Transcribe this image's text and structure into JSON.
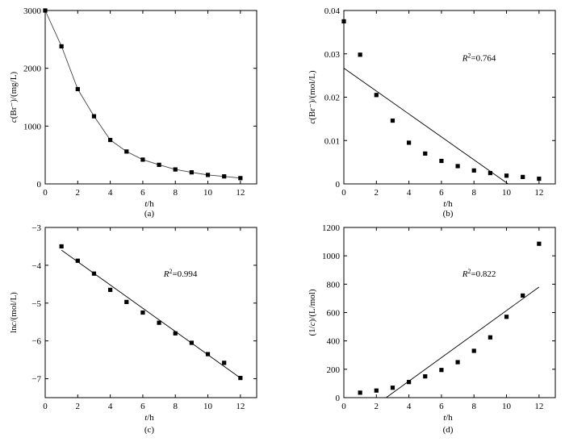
{
  "chart_data": [
    {
      "id": "a",
      "type": "line",
      "caption": "(a)",
      "xlabel_var": "t",
      "xlabel_unit": "/h",
      "ylabel_var": "c",
      "ylabel_unit": "(Br⁻)/(mg/L)",
      "xlim": [
        0,
        13
      ],
      "ylim": [
        0,
        3000
      ],
      "xticks": [
        0,
        2,
        4,
        6,
        8,
        10,
        12
      ],
      "yticks": [
        0,
        1000,
        2000,
        3000
      ],
      "x": [
        0,
        1,
        2,
        3,
        4,
        5,
        6,
        7,
        8,
        9,
        10,
        11,
        12
      ],
      "y": [
        3000,
        2380,
        1640,
        1170,
        760,
        560,
        420,
        330,
        250,
        200,
        155,
        130,
        100
      ],
      "markers": true,
      "connect": true
    },
    {
      "id": "b",
      "type": "scatter",
      "caption": "(b)",
      "xlabel_var": "t",
      "xlabel_unit": "/h",
      "ylabel_var": "c",
      "ylabel_unit": "(Br⁻)/(mol/L)",
      "xlim": [
        0,
        13
      ],
      "ylim": [
        0,
        0.04
      ],
      "xticks": [
        0,
        2,
        4,
        6,
        8,
        10,
        12
      ],
      "yticks": [
        0,
        0.01,
        0.02,
        0.03,
        0.04
      ],
      "ytick_labels": [
        "0",
        "0.01",
        "0.02",
        "0.03",
        "0.04"
      ],
      "x": [
        0,
        1,
        2,
        3,
        4,
        5,
        6,
        7,
        8,
        9,
        10,
        11,
        12
      ],
      "y": [
        0.0375,
        0.0298,
        0.0205,
        0.0146,
        0.0095,
        0.007,
        0.0053,
        0.0041,
        0.0031,
        0.0025,
        0.0019,
        0.0016,
        0.0012
      ],
      "fit": {
        "x": [
          0,
          10.1
        ],
        "y": [
          0.0267,
          0
        ]
      },
      "annotation": {
        "var": "R",
        "sup": "2",
        "text": "=0.764"
      }
    },
    {
      "id": "c",
      "type": "scatter",
      "caption": "(c)",
      "xlabel_var": "t",
      "xlabel_unit": "/h",
      "ylabel_var": "ln",
      "ylabel_var2": "c",
      "ylabel_unit": "/(mol/L)",
      "xlim": [
        0,
        13
      ],
      "ylim": [
        -7.5,
        -3
      ],
      "xticks": [
        0,
        2,
        4,
        6,
        8,
        10,
        12
      ],
      "yticks": [
        -7,
        -6,
        -5,
        -4,
        -3
      ],
      "ytick_labels": [
        "−7",
        "−6",
        "−5",
        "−4",
        "−3"
      ],
      "x": [
        1,
        2,
        3,
        4,
        5,
        6,
        7,
        8,
        9,
        10,
        11,
        12
      ],
      "y": [
        -3.5,
        -3.88,
        -4.22,
        -4.65,
        -4.97,
        -5.25,
        -5.52,
        -5.8,
        -6.05,
        -6.35,
        -6.58,
        -6.98
      ],
      "fit": {
        "x": [
          1,
          12
        ],
        "y": [
          -3.6,
          -6.98
        ]
      },
      "annotation": {
        "var": "R",
        "sup": "2",
        "text": "=0.994"
      }
    },
    {
      "id": "d",
      "type": "scatter",
      "caption": "(d)",
      "xlabel_var": "t",
      "xlabel_unit": "/h",
      "ylabel_pre": "(1/",
      "ylabel_var": "c",
      "ylabel_unit": ")/(L/mol)",
      "xlim": [
        0,
        13
      ],
      "ylim": [
        0,
        1200
      ],
      "xticks": [
        0,
        2,
        4,
        6,
        8,
        10,
        12
      ],
      "yticks": [
        0,
        200,
        400,
        600,
        800,
        1000,
        1200
      ],
      "x": [
        1,
        2,
        3,
        4,
        5,
        6,
        7,
        8,
        9,
        10,
        11,
        12
      ],
      "y": [
        35,
        50,
        70,
        110,
        150,
        195,
        250,
        330,
        425,
        570,
        720,
        1085
      ],
      "fit": {
        "x": [
          2.6,
          12
        ],
        "y": [
          0,
          780
        ]
      },
      "annotation": {
        "var": "R",
        "sup": "2",
        "text": "=0.822"
      }
    }
  ]
}
